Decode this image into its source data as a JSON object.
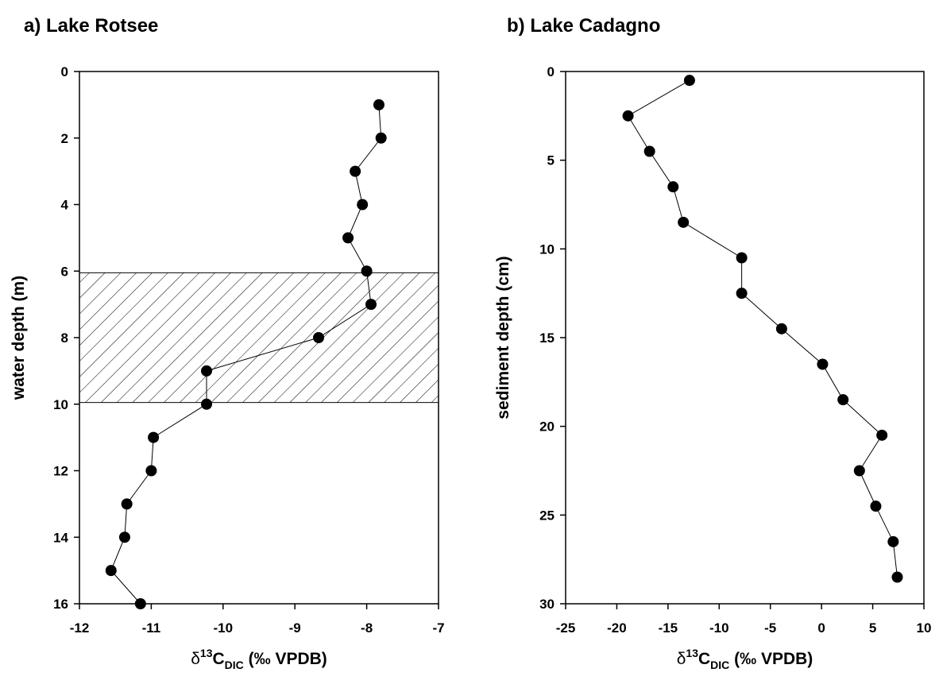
{
  "chart_data": [
    {
      "type": "line",
      "title": "a) Lake Rotsee",
      "ylabel": "water depth (m)",
      "xlabel_parts": [
        "δ",
        "13",
        "C",
        "DIC",
        " (‰ VPDB)"
      ],
      "x": [
        -7.83,
        -7.8,
        -8.16,
        -8.06,
        -8.26,
        -8.0,
        -7.94,
        -8.67,
        -10.23,
        -10.23,
        -10.97,
        -11.0,
        -11.34,
        -11.37,
        -11.56,
        -11.15
      ],
      "y": [
        1,
        2,
        3,
        4,
        5,
        6,
        7,
        8,
        9,
        10,
        11,
        12,
        13,
        14,
        15,
        16
      ],
      "shaded_range": [
        6.05,
        9.95
      ],
      "xlim": [
        -12,
        -7
      ],
      "xticks": [
        -12,
        -11,
        -10,
        -9,
        -8,
        -7
      ],
      "ylim": [
        0,
        16
      ],
      "yticks": [
        0,
        2,
        4,
        6,
        8,
        10,
        12,
        14,
        16
      ],
      "y_inverted": true,
      "color": "#000000",
      "grid": false
    },
    {
      "type": "line",
      "title": "b) Lake Cadagno",
      "ylabel": "sediment depth (cm)",
      "xlabel_parts": [
        "δ",
        "13",
        "C",
        "DIC",
        " (‰ VPDB)"
      ],
      "x": [
        -12.9,
        -18.9,
        -16.8,
        -14.5,
        -13.5,
        -7.8,
        -7.8,
        -3.9,
        0.1,
        2.1,
        5.9,
        3.7,
        5.3,
        7.0,
        7.4
      ],
      "y": [
        0.5,
        2.5,
        4.5,
        6.5,
        8.5,
        10.5,
        12.5,
        14.5,
        16.5,
        18.5,
        20.5,
        22.5,
        24.5,
        26.5,
        28.5
      ],
      "xlim": [
        -25,
        10
      ],
      "xticks": [
        -25,
        -20,
        -15,
        -10,
        -5,
        0,
        5,
        10
      ],
      "ylim": [
        0,
        30
      ],
      "yticks": [
        0,
        5,
        10,
        15,
        20,
        25,
        30
      ],
      "y_inverted": true,
      "color": "#000000",
      "grid": false
    }
  ]
}
